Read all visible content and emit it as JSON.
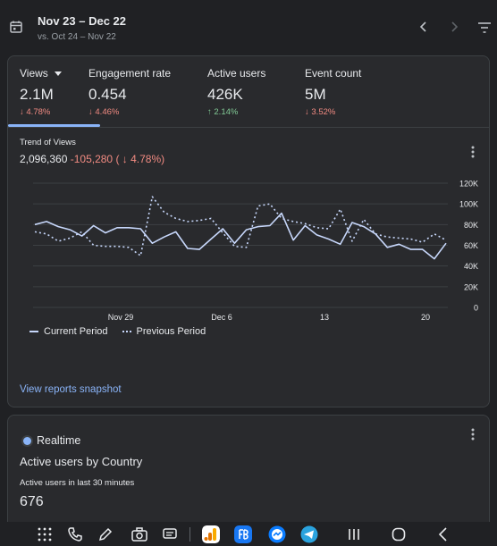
{
  "header": {
    "date_range": "Nov 23 – Dec 22",
    "compare_range": "vs. Oct 24 – Nov 22"
  },
  "metrics": [
    {
      "label": "Views",
      "value": "2.1M",
      "delta": "4.78%",
      "direction": "down"
    },
    {
      "label": "Engagement rate",
      "value": "0.454",
      "delta": "4.46%",
      "direction": "down"
    },
    {
      "label": "Active users",
      "value": "426K",
      "delta": "2.14%",
      "direction": "up"
    },
    {
      "label": "Event count",
      "value": "5M",
      "delta": "3.52%",
      "direction": "down"
    }
  ],
  "trend": {
    "title": "Trend of Views",
    "total": "2,096,360",
    "change": "-105,280 (",
    "change_pct": "4.78%)"
  },
  "chart_data": {
    "type": "line",
    "x_ticks": [
      "Nov 29",
      "Dec 6",
      "13",
      "20"
    ],
    "y_ticks": [
      "120K",
      "100K",
      "80K",
      "60K",
      "40K",
      "20K",
      "0"
    ],
    "ylim": [
      0,
      120000
    ],
    "legend_position": "bottom-left",
    "series": [
      {
        "name": "Current Period",
        "style": "solid",
        "color": "#c7d7fb",
        "values": [
          80000,
          83000,
          78000,
          75000,
          69000,
          79000,
          72000,
          77000,
          77000,
          76000,
          62000,
          68000,
          73000,
          57000,
          56000,
          66000,
          76000,
          62000,
          75000,
          78000,
          79000,
          91000,
          65000,
          79000,
          70000,
          66000,
          61000,
          82000,
          78000,
          71000,
          58000,
          61000,
          56000,
          56000,
          47000,
          62000
        ]
      },
      {
        "name": "Previous Period",
        "style": "dotted",
        "color": "#c7d7fb",
        "values": [
          73000,
          71000,
          64000,
          67000,
          73000,
          60000,
          59000,
          59000,
          58000,
          50000,
          107000,
          92000,
          86000,
          83000,
          84000,
          86000,
          72000,
          59000,
          58000,
          98000,
          100000,
          86000,
          83000,
          81000,
          77000,
          76000,
          95000,
          64000,
          85000,
          71000,
          68000,
          67000,
          66000,
          63000,
          71000,
          65000
        ]
      }
    ]
  },
  "links": {
    "snapshot": "View reports snapshot"
  },
  "realtime": {
    "title": "Realtime",
    "subtitle": "Active users by Country",
    "label": "Active users in last 30 minutes",
    "value": "676"
  },
  "taskbar": {
    "icons": [
      "apps-grid-icon",
      "phone-icon",
      "pen-icon",
      "camera-icon",
      "chat-icon",
      "analytics-app-icon",
      "fb-app-icon",
      "messenger-app-icon",
      "telegram-app-icon",
      "recents-icon",
      "home-icon",
      "back-icon"
    ]
  }
}
